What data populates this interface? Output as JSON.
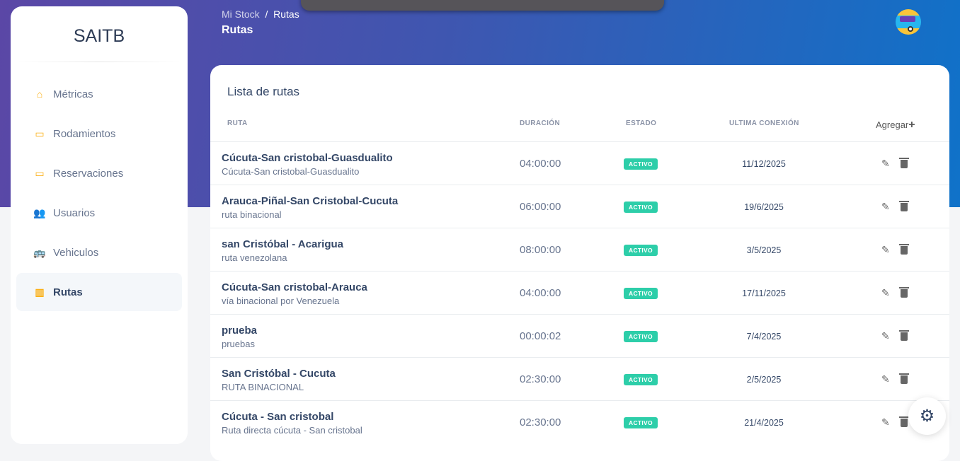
{
  "brand": "SAITB",
  "sidebar": {
    "items": [
      {
        "label": "Métricas",
        "icon": "home-icon",
        "glyph": "⌂"
      },
      {
        "label": "Rodamientos",
        "icon": "ticket-icon",
        "glyph": "▭"
      },
      {
        "label": "Reservaciones",
        "icon": "ticket-icon",
        "glyph": "▭"
      },
      {
        "label": "Usuarios",
        "icon": "users-icon",
        "glyph": "👥"
      },
      {
        "label": "Vehiculos",
        "icon": "bus-icon",
        "glyph": "🚌"
      },
      {
        "label": "Rutas",
        "icon": "map-icon",
        "glyph": "▥",
        "active": true
      }
    ]
  },
  "breadcrumb": {
    "root": "Mi Stock",
    "sep": "/",
    "current": "Rutas"
  },
  "page_title": "Rutas",
  "card": {
    "title": "Lista de rutas",
    "headers": {
      "ruta": "RUTA",
      "duracion": "DURACIÓN",
      "estado": "ESTADO",
      "ultima": "ULTIMA CONEXIÓN"
    },
    "add_label": "Agregar",
    "add_icon": "+"
  },
  "rows": [
    {
      "name": "Cúcuta-San cristobal-Guasdualito",
      "desc": "Cúcuta-San cristobal-Guasdualito",
      "duration": "04:00:00",
      "status": "ACTIVO",
      "date": "11/12/2025"
    },
    {
      "name": "Arauca-Piñal-San Cristobal-Cucuta",
      "desc": "ruta binacional",
      "duration": "06:00:00",
      "status": "ACTIVO",
      "date": "19/6/2025"
    },
    {
      "name": "san Cristóbal - Acarigua",
      "desc": "ruta venezolana",
      "duration": "08:00:00",
      "status": "ACTIVO",
      "date": "3/5/2025"
    },
    {
      "name": "Cúcuta-San cristobal-Arauca",
      "desc": "vía binacional por Venezuela",
      "duration": "04:00:00",
      "status": "ACTIVO",
      "date": "17/11/2025"
    },
    {
      "name": "prueba",
      "desc": "pruebas",
      "duration": "00:00:02",
      "status": "ACTIVO",
      "date": "7/4/2025"
    },
    {
      "name": "San Cristóbal - Cucuta",
      "desc": "RUTA BINACIONAL",
      "duration": "02:30:00",
      "status": "ACTIVO",
      "date": "2/5/2025"
    },
    {
      "name": "Cúcuta - San cristobal",
      "desc": "Ruta directa cúcuta - San cristobal",
      "duration": "02:30:00",
      "status": "ACTIVO",
      "date": "21/4/2025"
    }
  ],
  "colors": {
    "accent": "#fbb016",
    "status_active": "#2dcea9",
    "text": "#344767"
  }
}
